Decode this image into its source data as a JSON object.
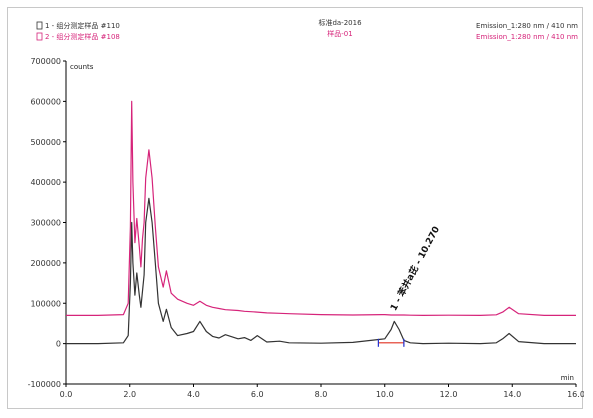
{
  "chart_data": {
    "type": "line",
    "legend": {
      "left": [
        {
          "text": "1 - 组分测定样品 #110",
          "color": "#333333"
        },
        {
          "text": "2 - 组分测定样品 #108",
          "color": "#d6247a"
        }
      ],
      "center": [
        {
          "text": "标准da-2016",
          "color": "#333333"
        },
        {
          "text": "样品-01",
          "color": "#d6247a"
        }
      ],
      "right": [
        {
          "text": "Emission_1:280 nm / 410 nm",
          "color": "#333333"
        },
        {
          "text": "Emission_1:280 nm / 410 nm",
          "color": "#d6247a"
        }
      ]
    },
    "ylabel": "counts",
    "xlabel": "min",
    "xlim": [
      0,
      16
    ],
    "ylim": [
      -100000,
      700000
    ],
    "x_ticks": [
      0,
      2,
      4,
      6,
      8,
      10,
      12,
      14,
      16
    ],
    "x_tick_labels": [
      "0.0",
      "2.0",
      "4.0",
      "6.0",
      "8.0",
      "10.0",
      "12.0",
      "14.0",
      "16.0"
    ],
    "y_ticks": [
      -100000,
      0,
      100000,
      200000,
      300000,
      400000,
      500000,
      600000,
      700000
    ],
    "y_tick_labels": [
      "-100000",
      "0",
      "100000",
      "200000",
      "300000",
      "400000",
      "500000",
      "600000",
      "700000"
    ],
    "baseline_offset": 70000,
    "series": [
      {
        "color": "#333333",
        "x": [
          0,
          1.0,
          1.8,
          1.95,
          2.02,
          2.06,
          2.1,
          2.16,
          2.22,
          2.3,
          2.35,
          2.4,
          2.45,
          2.5,
          2.6,
          2.7,
          2.8,
          2.9,
          3.05,
          3.15,
          3.3,
          3.5,
          3.8,
          4.0,
          4.2,
          4.4,
          4.6,
          4.8,
          5.0,
          5.4,
          5.6,
          5.8,
          6.0,
          6.3,
          6.7,
          7.0,
          8.0,
          9.0,
          10.0,
          10.2,
          10.3,
          10.45,
          10.6,
          10.8,
          11.2,
          12.0,
          13.0,
          13.5,
          13.7,
          13.9,
          14.2,
          15.0,
          16.0
        ],
        "y": [
          0,
          0,
          2000,
          20000,
          150000,
          300000,
          200000,
          120000,
          175000,
          120000,
          90000,
          130000,
          170000,
          300000,
          360000,
          300000,
          200000,
          100000,
          55000,
          85000,
          40000,
          20000,
          25000,
          30000,
          55000,
          30000,
          18000,
          14000,
          22000,
          12000,
          15000,
          8000,
          20000,
          4000,
          6000,
          2000,
          1000,
          3000,
          12000,
          35000,
          55000,
          35000,
          8000,
          2000,
          0,
          1000,
          0,
          2000,
          12000,
          25000,
          5000,
          0,
          0
        ]
      },
      {
        "color": "#d6247a",
        "x": [
          0,
          1.0,
          1.8,
          1.95,
          2.02,
          2.06,
          2.1,
          2.16,
          2.22,
          2.3,
          2.35,
          2.4,
          2.45,
          2.5,
          2.6,
          2.7,
          2.8,
          2.9,
          3.05,
          3.15,
          3.3,
          3.5,
          3.8,
          4.0,
          4.2,
          4.4,
          4.6,
          4.8,
          5.0,
          5.4,
          5.6,
          5.8,
          6.0,
          6.3,
          6.7,
          7.0,
          8.0,
          9.0,
          10.0,
          10.2,
          10.3,
          10.45,
          10.6,
          10.8,
          11.2,
          12.0,
          13.0,
          13.5,
          13.7,
          13.9,
          14.2,
          15.0,
          16.0
        ],
        "y": [
          0,
          0,
          2000,
          30000,
          220000,
          530000,
          330000,
          180000,
          240000,
          170000,
          120000,
          190000,
          230000,
          340000,
          410000,
          340000,
          220000,
          120000,
          70000,
          110000,
          55000,
          40000,
          30000,
          25000,
          35000,
          25000,
          20000,
          17000,
          14000,
          12000,
          10000,
          9000,
          8000,
          6000,
          5000,
          4000,
          2000,
          1000,
          2000,
          1000,
          1000,
          1000,
          1000,
          500,
          0,
          500,
          0,
          1500,
          8000,
          20000,
          4000,
          0,
          0
        ]
      }
    ],
    "annotation": {
      "text": "1 - 苯并a芘 - 10.270",
      "x": 10.27,
      "y": 55000
    },
    "integration": {
      "x_start": 9.8,
      "x_end": 10.6,
      "y": 2000
    }
  }
}
